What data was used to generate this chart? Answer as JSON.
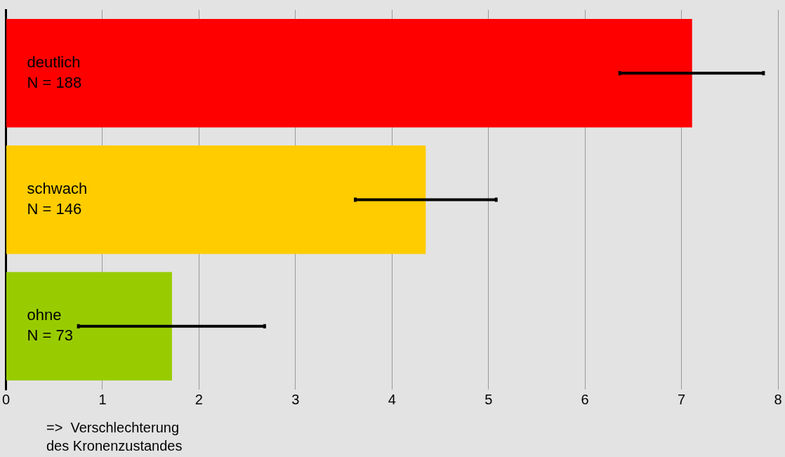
{
  "chart_data": {
    "type": "bar",
    "orientation": "horizontal",
    "categories": [
      "deutlich\nN = 188",
      "schwach\nN = 146",
      "ohne\nN = 73"
    ],
    "colors": [
      "#ff0000",
      "#ffcc00",
      "#99cc00"
    ],
    "values": [
      7.11,
      4.35,
      1.72
    ],
    "errors": [
      [
        6.36,
        7.85
      ],
      [
        3.62,
        5.08
      ],
      [
        0.75,
        2.68
      ]
    ],
    "xlabel": "=>  Verschlechterung\ndes Kronenzustandes",
    "xlim": [
      0,
      8
    ],
    "xticks": [
      0,
      1,
      2,
      3,
      4,
      5,
      6,
      7,
      8
    ],
    "grid": "x",
    "legend": false
  }
}
